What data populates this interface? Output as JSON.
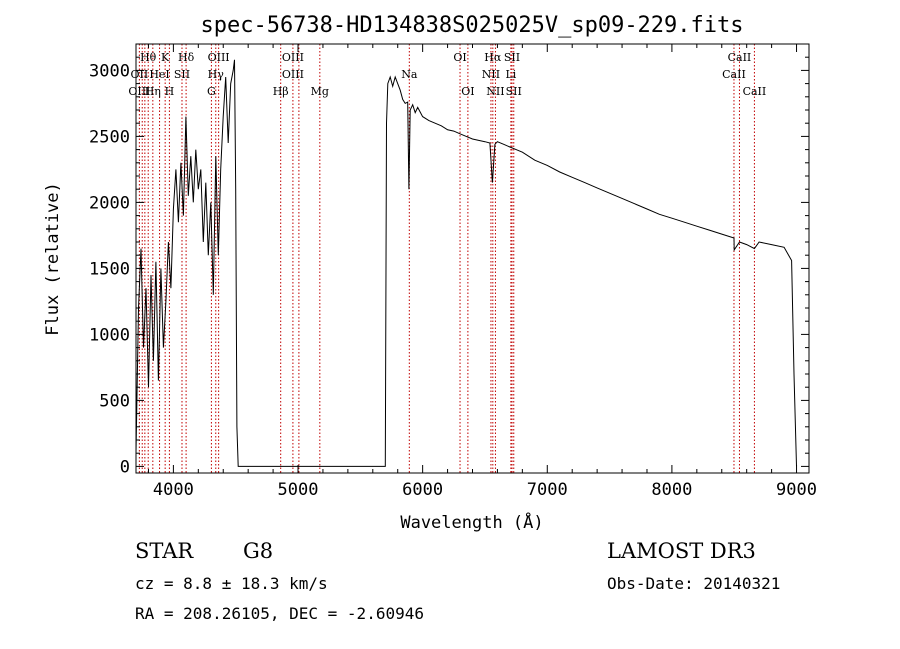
{
  "chart_data": {
    "type": "line",
    "title": "spec-56738-HD134838S025025V_sp09-229.fits",
    "xlabel": "Wavelength (Å)",
    "ylabel": "Flux (relative)",
    "xlim": [
      3700,
      9100
    ],
    "ylim": [
      -50,
      3200
    ],
    "xticks": [
      4000,
      5000,
      6000,
      7000,
      8000,
      9000
    ],
    "yticks": [
      0,
      500,
      1000,
      1500,
      2000,
      2500,
      3000
    ],
    "series": [
      {
        "name": "spectrum",
        "x": [
          3700,
          3720,
          3740,
          3760,
          3780,
          3800,
          3820,
          3840,
          3860,
          3880,
          3900,
          3920,
          3940,
          3960,
          3980,
          4000,
          4020,
          4040,
          4060,
          4080,
          4100,
          4120,
          4140,
          4160,
          4180,
          4200,
          4220,
          4240,
          4260,
          4280,
          4300,
          4320,
          4340,
          4360,
          4380,
          4400,
          4420,
          4440,
          4460,
          4480,
          4490,
          4500,
          4510,
          4520,
          5700,
          5710,
          5720,
          5740,
          5760,
          5780,
          5800,
          5820,
          5840,
          5860,
          5880,
          5890,
          5900,
          5920,
          5940,
          5960,
          6000,
          6050,
          6100,
          6150,
          6200,
          6250,
          6300,
          6350,
          6400,
          6450,
          6500,
          6540,
          6560,
          6580,
          6600,
          6650,
          6700,
          6750,
          6800,
          6900,
          7000,
          7100,
          7200,
          7300,
          7400,
          7500,
          7600,
          7700,
          7800,
          7900,
          8000,
          8100,
          8200,
          8300,
          8400,
          8498,
          8500,
          8542,
          8600,
          8662,
          8700,
          8800,
          8900,
          8960,
          8980,
          9000
        ],
        "values": [
          100,
          1200,
          1650,
          900,
          1350,
          600,
          1450,
          800,
          1550,
          650,
          1500,
          900,
          1250,
          1700,
          1350,
          1950,
          2250,
          1850,
          2300,
          1900,
          2650,
          2050,
          2350,
          2000,
          2400,
          2100,
          2250,
          1700,
          2150,
          1600,
          2000,
          1300,
          2350,
          1600,
          2250,
          2650,
          2950,
          2450,
          2900,
          3000,
          3080,
          2100,
          300,
          0,
          0,
          2600,
          2900,
          2950,
          2880,
          2950,
          2900,
          2850,
          2780,
          2750,
          2760,
          2100,
          2700,
          2740,
          2680,
          2720,
          2650,
          2620,
          2600,
          2580,
          2550,
          2540,
          2520,
          2500,
          2480,
          2470,
          2460,
          2450,
          2150,
          2440,
          2460,
          2440,
          2420,
          2400,
          2380,
          2320,
          2280,
          2230,
          2190,
          2150,
          2110,
          2070,
          2030,
          1990,
          1950,
          1910,
          1880,
          1850,
          1820,
          1790,
          1760,
          1730,
          1640,
          1700,
          1680,
          1650,
          1700,
          1680,
          1660,
          1560,
          700,
          0
        ]
      }
    ],
    "spectral_lines": [
      {
        "label": "Hθ",
        "x": 3798,
        "row": 1
      },
      {
        "label": "K",
        "x": 3934,
        "row": 1
      },
      {
        "label": "Hδ",
        "x": 4102,
        "row": 1
      },
      {
        "label": "OIII",
        "x": 4363,
        "row": 1
      },
      {
        "label": "OIII",
        "x": 4959,
        "row": 1
      },
      {
        "label": "OI",
        "x": 6300,
        "row": 1
      },
      {
        "label": "Hα",
        "x": 6563,
        "row": 1
      },
      {
        "label": "SII",
        "x": 6717,
        "row": 1
      },
      {
        "label": "CaII",
        "x": 8542,
        "row": 1
      },
      {
        "label": "OII",
        "x": 3727,
        "row": 2
      },
      {
        "label": "HeI",
        "x": 3889,
        "row": 2
      },
      {
        "label": "SII",
        "x": 4069,
        "row": 2
      },
      {
        "label": "Hγ",
        "x": 4340,
        "row": 2
      },
      {
        "label": "OIII",
        "x": 4959,
        "row": 2
      },
      {
        "label": "Na",
        "x": 5893,
        "row": 2
      },
      {
        "label": "NII",
        "x": 6548,
        "row": 2
      },
      {
        "label": "Li",
        "x": 6708,
        "row": 2
      },
      {
        "label": "CaII",
        "x": 8498,
        "row": 2
      },
      {
        "label": "OIII",
        "x": 3727,
        "row": 3
      },
      {
        "label": "Hη",
        "x": 3835,
        "row": 3
      },
      {
        "label": "H",
        "x": 3968,
        "row": 3
      },
      {
        "label": "G",
        "x": 4305,
        "row": 3
      },
      {
        "label": "Hβ",
        "x": 4861,
        "row": 3
      },
      {
        "label": "Mg",
        "x": 5175,
        "row": 3
      },
      {
        "label": "OI",
        "x": 6363,
        "row": 3
      },
      {
        "label": "NII",
        "x": 6584,
        "row": 3
      },
      {
        "label": "SII",
        "x": 6731,
        "row": 3
      },
      {
        "label": "CaII",
        "x": 8662,
        "row": 3
      }
    ],
    "line_marks": [
      3727,
      3750,
      3771,
      3798,
      3835,
      3889,
      3934,
      3968,
      4069,
      4102,
      4305,
      4340,
      4363,
      4861,
      4959,
      5007,
      5175,
      5893,
      6300,
      6363,
      6548,
      6563,
      6584,
      6708,
      6717,
      6731,
      8498,
      8542,
      8662
    ],
    "line_color": "#c00000"
  },
  "info": {
    "object": "STAR",
    "subclass": "G8",
    "cz": "cz = 8.8 ± 18.3 km/s",
    "coords": "RA = 208.26105, DEC =  -2.60946",
    "survey": "LAMOST DR3",
    "obs_date": "Obs-Date: 20140321"
  }
}
